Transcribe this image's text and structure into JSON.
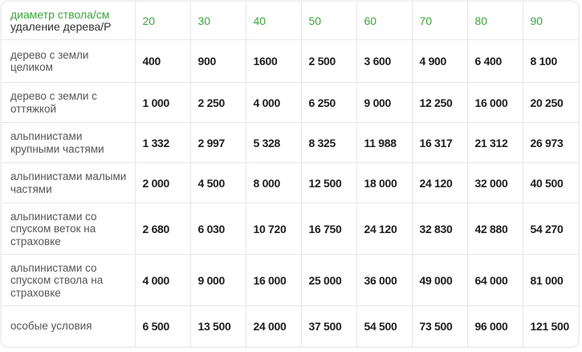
{
  "header": {
    "corner_line1": "диаметр ствола/см",
    "corner_line2": "удаление дерева/Р",
    "diameters": [
      "20",
      "30",
      "40",
      "50",
      "60",
      "70",
      "80",
      "90"
    ]
  },
  "rows": [
    {
      "label": "дерево с земли целиком",
      "values": [
        "400",
        "900",
        "1600",
        "2 500",
        "3 600",
        "4 900",
        "6 400",
        "8 100"
      ]
    },
    {
      "label": "дерево с земли с оттяжкой",
      "values": [
        "1 000",
        "2 250",
        "4 000",
        "6 250",
        "9 000",
        "12 250",
        "16 000",
        "20 250"
      ]
    },
    {
      "label": "альпинистами крупными частями",
      "values": [
        "1 332",
        "2 997",
        "5 328",
        "8 325",
        "11 988",
        "16 317",
        "21 312",
        "26 973"
      ]
    },
    {
      "label": "альпинистами малыми частями",
      "values": [
        "2 000",
        "4 500",
        "8 000",
        "12  500",
        "18 000",
        "24 120",
        "32 000",
        "40 500"
      ]
    },
    {
      "label": "альпинистами со спуском веток на страховке",
      "values": [
        "2 680",
        "6 030",
        "10 720",
        "16 750",
        "24 120",
        "32 830",
        "42 880",
        "54 270"
      ]
    },
    {
      "label": "альпинистами со спуском ствола на страховке",
      "values": [
        "4 000",
        "9 000",
        "16 000",
        "25 000",
        "36 000",
        "49 000",
        "64 000",
        "81 000"
      ]
    },
    {
      "label": "особые условия",
      "values": [
        "6 500",
        "13 500",
        "24 000",
        "37 500",
        "54 500",
        "73 500",
        "96 000",
        "121 500"
      ]
    }
  ],
  "colors": {
    "accent_green": "#3aa53a",
    "value_text": "#1e1e1e",
    "label_text": "#555555",
    "grid": "#e6e6e6"
  }
}
